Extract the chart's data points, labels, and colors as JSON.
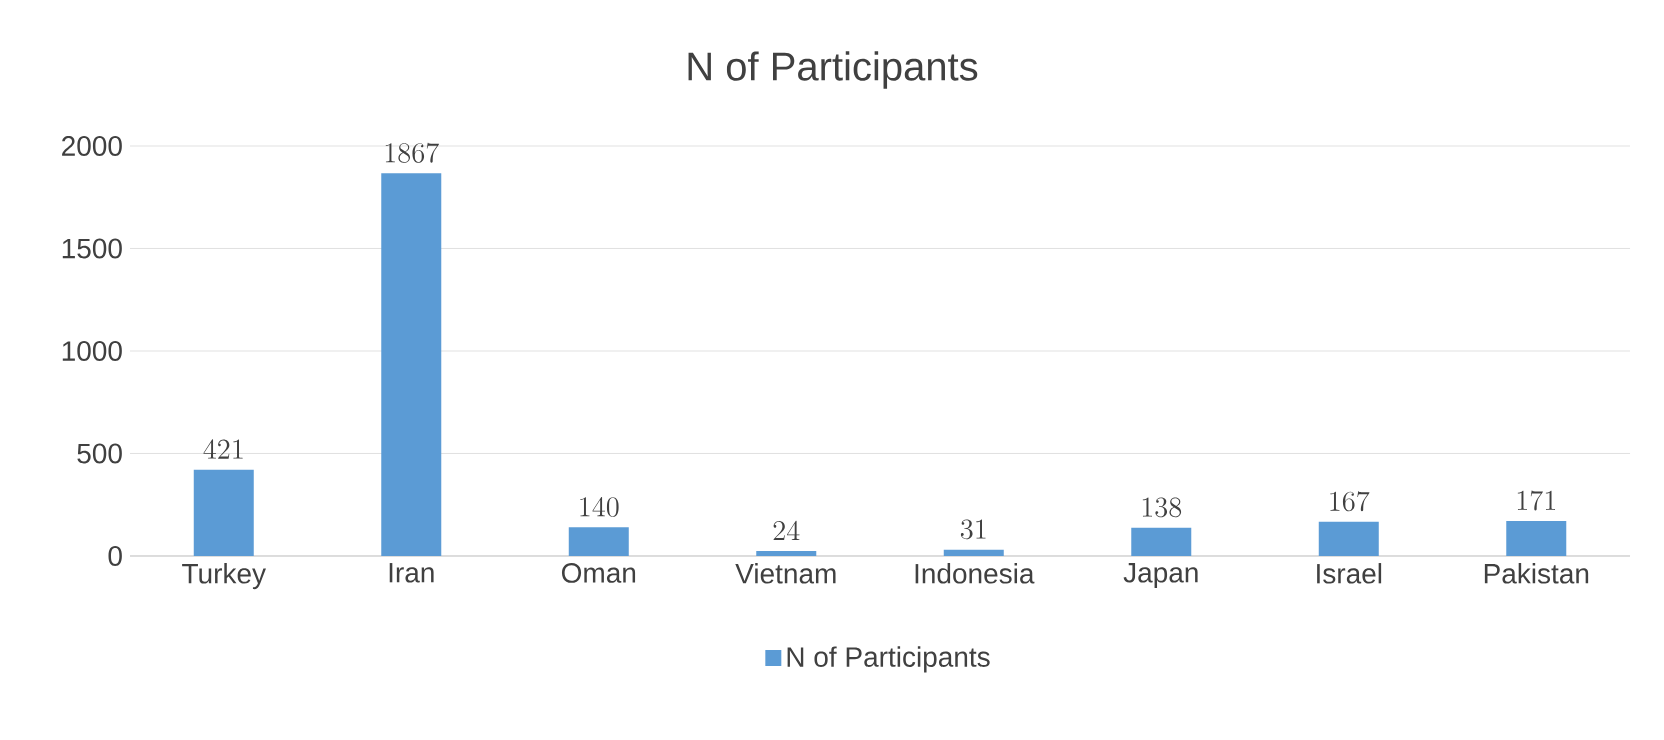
{
  "chart_data": {
    "type": "bar",
    "title": "N of Participants",
    "categories": [
      "Turkey",
      "Iran",
      "Oman",
      "Vietnam",
      "Indonesia",
      "Japan",
      "Israel",
      "Pakistan"
    ],
    "series": [
      {
        "name": "N of Participants",
        "color": "#5b9bd5",
        "values": [
          421,
          1867,
          140,
          24,
          31,
          138,
          167,
          171
        ]
      }
    ],
    "ylim": [
      0,
      2000
    ],
    "yticks": [
      0,
      500,
      1000,
      1500,
      2000
    ],
    "grid": "y",
    "legend": "bottom",
    "data_labels": true
  }
}
